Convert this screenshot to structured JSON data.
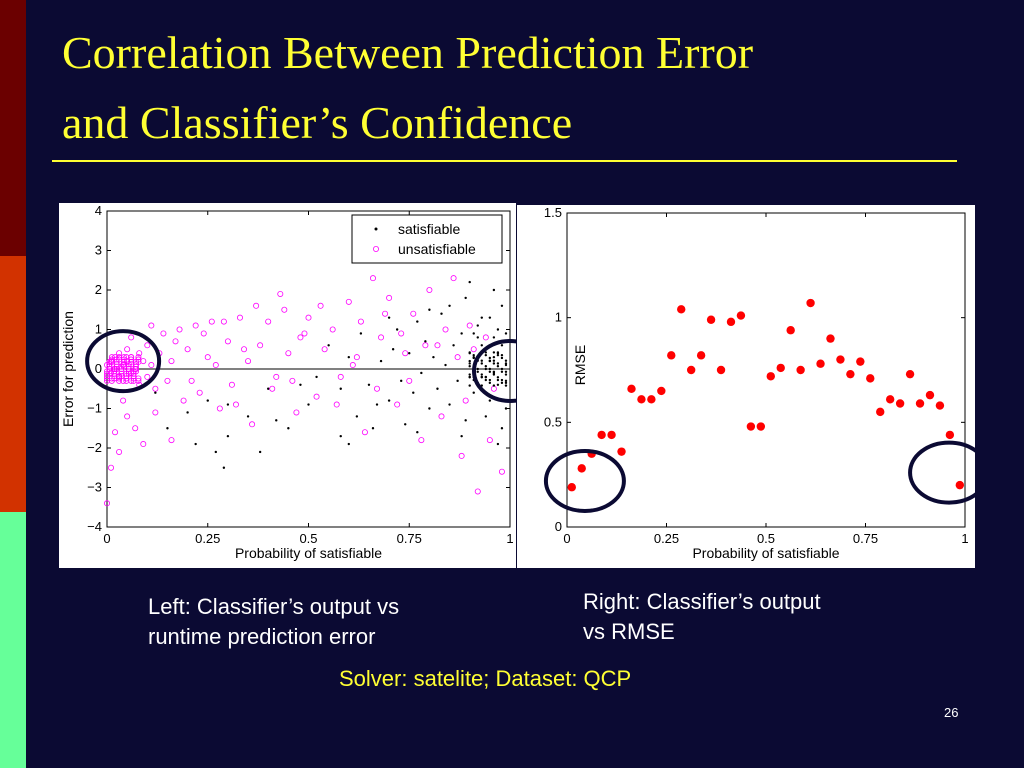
{
  "title": {
    "line1": "Correlation Between Prediction Error",
    "line2": "and Classifier’s Confidence"
  },
  "captions": {
    "left_line1": "Left: Classifier’s output vs",
    "left_line2": "runtime prediction error",
    "right_line1": "Right: Classifier’s output",
    "right_line2": "vs RMSE",
    "solver": "Solver: satelite; Dataset: QCP"
  },
  "slide_number": "26",
  "colors": {
    "background": "#0b0a33",
    "title": "#ffff33",
    "satisfiable": "#000000",
    "unsatisfiable": "#ff00ff",
    "rmse_points": "#ff0000",
    "highlight_circle": "#0b0a33"
  },
  "chart_data": [
    {
      "type": "scatter",
      "xlabel": "Probability of satisfiable",
      "ylabel": "Error for prediction",
      "xlim": [
        0,
        1
      ],
      "ylim": [
        -4,
        4
      ],
      "x_ticks": [
        0,
        0.25,
        0.5,
        0.75,
        1
      ],
      "x_tick_labels": [
        "0",
        "0.25",
        "0.5",
        "0.75",
        "1"
      ],
      "y_ticks": [
        -4,
        -3,
        -2,
        -1,
        0,
        1,
        2,
        3,
        4
      ],
      "y_tick_labels": [
        "−4",
        "−3",
        "−2",
        "−1",
        "0",
        "1",
        "2",
        "3",
        "4"
      ],
      "legend_position": "top-right",
      "reference_line_y": 0,
      "highlight_circles": [
        {
          "cx": 0.04,
          "cy": 0.2
        },
        {
          "cx": 1.0,
          "cy": -0.05
        }
      ],
      "series": [
        {
          "name": "satisfiable",
          "marker": "dot",
          "color": "#000000",
          "points": [
            [
              0.52,
              -0.2
            ],
            [
              0.55,
              0.6
            ],
            [
              0.58,
              -0.5
            ],
            [
              0.6,
              0.3
            ],
            [
              0.62,
              -1.2
            ],
            [
              0.63,
              0.9
            ],
            [
              0.65,
              -0.4
            ],
            [
              0.66,
              -1.5
            ],
            [
              0.68,
              0.2
            ],
            [
              0.7,
              -0.8
            ],
            [
              0.71,
              0.5
            ],
            [
              0.72,
              1.0
            ],
            [
              0.73,
              -0.3
            ],
            [
              0.74,
              -1.4
            ],
            [
              0.75,
              0.4
            ],
            [
              0.76,
              -0.6
            ],
            [
              0.77,
              1.2
            ],
            [
              0.78,
              -0.1
            ],
            [
              0.79,
              0.7
            ],
            [
              0.8,
              -1.0
            ],
            [
              0.81,
              0.3
            ],
            [
              0.82,
              -0.5
            ],
            [
              0.83,
              1.4
            ],
            [
              0.84,
              0.1
            ],
            [
              0.85,
              -0.9
            ],
            [
              0.86,
              0.6
            ],
            [
              0.87,
              -0.3
            ],
            [
              0.88,
              0.9
            ],
            [
              0.89,
              -1.3
            ],
            [
              0.9,
              0.2
            ],
            [
              0.91,
              -0.6
            ],
            [
              0.92,
              1.1
            ],
            [
              0.93,
              -0.2
            ],
            [
              0.94,
              0.5
            ],
            [
              0.95,
              -0.8
            ],
            [
              0.96,
              0.3
            ],
            [
              0.97,
              -0.4
            ],
            [
              0.98,
              1.6
            ],
            [
              0.99,
              0.1
            ],
            [
              0.99,
              -0.3
            ],
            [
              0.97,
              0.4
            ],
            [
              0.96,
              -0.1
            ],
            [
              0.95,
              0.2
            ],
            [
              0.94,
              -0.2
            ],
            [
              0.93,
              0.6
            ],
            [
              0.92,
              -0.4
            ],
            [
              0.91,
              0.3
            ],
            [
              0.9,
              -0.2
            ],
            [
              0.95,
              1.3
            ],
            [
              0.96,
              2.0
            ],
            [
              0.9,
              2.2
            ],
            [
              0.88,
              -1.7
            ],
            [
              0.85,
              1.6
            ],
            [
              0.8,
              1.5
            ],
            [
              0.77,
              -1.6
            ],
            [
              0.7,
              1.3
            ],
            [
              0.67,
              -0.9
            ],
            [
              0.6,
              -1.9
            ],
            [
              0.58,
              -1.7
            ],
            [
              0.5,
              -0.9
            ],
            [
              0.45,
              -1.5
            ],
            [
              0.4,
              -0.5
            ],
            [
              0.38,
              -2.1
            ],
            [
              0.35,
              -1.2
            ],
            [
              0.3,
              -1.7
            ],
            [
              0.29,
              -2.5
            ],
            [
              0.27,
              -2.1
            ],
            [
              0.25,
              -0.8
            ],
            [
              0.2,
              -1.1
            ],
            [
              0.15,
              -1.5
            ],
            [
              0.3,
              -0.9
            ],
            [
              0.22,
              -1.9
            ],
            [
              0.12,
              -0.6
            ],
            [
              0.42,
              -1.3
            ],
            [
              0.48,
              -0.4
            ],
            [
              0.98,
              -1.5
            ],
            [
              0.99,
              -1.0
            ],
            [
              0.97,
              -1.9
            ],
            [
              0.94,
              -1.2
            ],
            [
              0.96,
              0.8
            ],
            [
              0.98,
              0.6
            ],
            [
              0.99,
              0.9
            ],
            [
              0.97,
              1.0
            ],
            [
              0.93,
              1.3
            ],
            [
              0.91,
              0.9
            ],
            [
              0.89,
              1.8
            ],
            [
              0.9,
              0.4
            ],
            [
              0.92,
              0.8
            ]
          ]
        },
        {
          "name": "unsatisfiable",
          "marker": "circle",
          "color": "#ff00ff",
          "points": [
            [
              0.0,
              0.1
            ],
            [
              0.01,
              0.2
            ],
            [
              0.01,
              -0.1
            ],
            [
              0.02,
              0.3
            ],
            [
              0.02,
              0.0
            ],
            [
              0.03,
              -0.2
            ],
            [
              0.03,
              0.4
            ],
            [
              0.04,
              0.1
            ],
            [
              0.04,
              -0.3
            ],
            [
              0.05,
              0.2
            ],
            [
              0.05,
              0.5
            ],
            [
              0.06,
              -0.1
            ],
            [
              0.06,
              0.3
            ],
            [
              0.07,
              0.0
            ],
            [
              0.08,
              0.4
            ],
            [
              0.08,
              -0.4
            ],
            [
              0.09,
              0.2
            ],
            [
              0.1,
              -0.2
            ],
            [
              0.1,
              0.6
            ],
            [
              0.11,
              0.1
            ],
            [
              0.12,
              -0.5
            ],
            [
              0.13,
              0.4
            ],
            [
              0.14,
              0.9
            ],
            [
              0.15,
              -0.3
            ],
            [
              0.16,
              0.2
            ],
            [
              0.18,
              1.0
            ],
            [
              0.19,
              -0.8
            ],
            [
              0.2,
              0.5
            ],
            [
              0.22,
              1.1
            ],
            [
              0.23,
              -0.6
            ],
            [
              0.25,
              0.3
            ],
            [
              0.26,
              1.2
            ],
            [
              0.28,
              -1.0
            ],
            [
              0.3,
              0.7
            ],
            [
              0.31,
              -0.4
            ],
            [
              0.33,
              1.3
            ],
            [
              0.35,
              0.2
            ],
            [
              0.36,
              -1.4
            ],
            [
              0.38,
              0.6
            ],
            [
              0.4,
              1.2
            ],
            [
              0.42,
              -0.2
            ],
            [
              0.44,
              1.5
            ],
            [
              0.45,
              0.4
            ],
            [
              0.47,
              -1.1
            ],
            [
              0.48,
              0.8
            ],
            [
              0.5,
              1.3
            ],
            [
              0.52,
              -0.7
            ],
            [
              0.54,
              0.5
            ],
            [
              0.56,
              1.0
            ],
            [
              0.58,
              -0.2
            ],
            [
              0.6,
              1.7
            ],
            [
              0.62,
              0.3
            ],
            [
              0.64,
              -1.6
            ],
            [
              0.66,
              2.3
            ],
            [
              0.68,
              0.8
            ],
            [
              0.7,
              1.8
            ],
            [
              0.72,
              -0.9
            ],
            [
              0.74,
              0.4
            ],
            [
              0.76,
              1.4
            ],
            [
              0.78,
              -1.8
            ],
            [
              0.8,
              2.0
            ],
            [
              0.82,
              0.6
            ],
            [
              0.84,
              1.0
            ],
            [
              0.86,
              2.3
            ],
            [
              0.88,
              -2.2
            ],
            [
              0.9,
              1.1
            ],
            [
              0.92,
              -3.1
            ],
            [
              0.94,
              0.8
            ],
            [
              0.96,
              -0.5
            ],
            [
              0.98,
              -2.6
            ],
            [
              0.02,
              -1.6
            ],
            [
              0.03,
              -2.1
            ],
            [
              0.05,
              -1.2
            ],
            [
              0.07,
              -1.5
            ],
            [
              0.09,
              -1.9
            ],
            [
              0.12,
              -1.1
            ],
            [
              0.16,
              -1.8
            ],
            [
              0.0,
              -3.4
            ],
            [
              0.01,
              -2.5
            ],
            [
              0.04,
              -0.8
            ],
            [
              0.06,
              0.8
            ],
            [
              0.11,
              1.1
            ],
            [
              0.17,
              0.7
            ],
            [
              0.21,
              -0.3
            ],
            [
              0.24,
              0.9
            ],
            [
              0.27,
              0.1
            ],
            [
              0.29,
              1.2
            ],
            [
              0.32,
              -0.9
            ],
            [
              0.34,
              0.5
            ],
            [
              0.37,
              1.6
            ],
            [
              0.41,
              -0.5
            ],
            [
              0.43,
              1.9
            ],
            [
              0.46,
              -0.3
            ],
            [
              0.49,
              0.9
            ],
            [
              0.53,
              1.6
            ],
            [
              0.57,
              -0.9
            ],
            [
              0.61,
              0.1
            ],
            [
              0.63,
              1.2
            ],
            [
              0.67,
              -0.5
            ],
            [
              0.69,
              1.4
            ],
            [
              0.73,
              0.9
            ],
            [
              0.75,
              -0.3
            ],
            [
              0.79,
              0.6
            ],
            [
              0.83,
              -1.2
            ],
            [
              0.87,
              0.3
            ],
            [
              0.89,
              -0.8
            ],
            [
              0.91,
              0.5
            ],
            [
              0.95,
              -1.8
            ]
          ]
        }
      ]
    },
    {
      "type": "scatter",
      "xlabel": "Probability of satisfiable",
      "ylabel": "RMSE",
      "xlim": [
        0,
        1
      ],
      "ylim": [
        0,
        1.5
      ],
      "x_ticks": [
        0,
        0.25,
        0.5,
        0.75,
        1
      ],
      "x_tick_labels": [
        "0",
        "0.25",
        "0.5",
        "0.75",
        "1"
      ],
      "y_ticks": [
        0,
        0.5,
        1,
        1.5
      ],
      "y_tick_labels": [
        "0",
        "0.5",
        "1",
        "1.5"
      ],
      "highlight_circles": [
        {
          "cx": 0.045,
          "cy": 0.22
        },
        {
          "cx": 0.96,
          "cy": 0.26
        }
      ],
      "series": [
        {
          "marker": "filled-circle",
          "color": "#ff0000",
          "x": [
            0.012,
            0.037,
            0.062,
            0.087,
            0.112,
            0.137,
            0.162,
            0.187,
            0.212,
            0.237,
            0.262,
            0.287,
            0.312,
            0.337,
            0.362,
            0.387,
            0.412,
            0.437,
            0.462,
            0.487,
            0.512,
            0.537,
            0.562,
            0.587,
            0.612,
            0.637,
            0.662,
            0.687,
            0.712,
            0.737,
            0.762,
            0.787,
            0.812,
            0.837,
            0.862,
            0.887,
            0.912,
            0.937,
            0.962,
            0.987
          ],
          "y": [
            0.19,
            0.28,
            0.35,
            0.44,
            0.44,
            0.36,
            0.66,
            0.61,
            0.61,
            0.65,
            0.82,
            1.04,
            0.75,
            0.82,
            0.99,
            0.75,
            0.98,
            1.01,
            0.48,
            0.48,
            0.72,
            0.76,
            0.94,
            0.75,
            1.07,
            0.78,
            0.9,
            0.8,
            0.73,
            0.79,
            0.71,
            0.55,
            0.61,
            0.59,
            0.73,
            0.59,
            0.63,
            0.58,
            0.44,
            0.2
          ]
        }
      ]
    }
  ]
}
